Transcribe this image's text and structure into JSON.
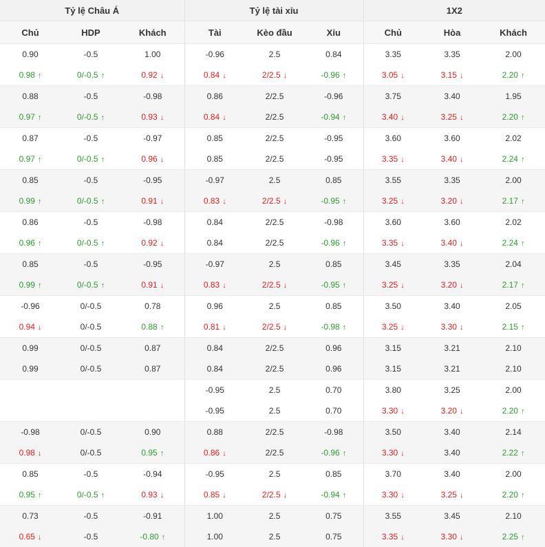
{
  "headers": {
    "asian": "Tỷ lệ Châu Á",
    "overunder": "Tỷ lệ tài xỉu",
    "x12": "1X2"
  },
  "subheaders": [
    "Chủ",
    "HDP",
    "Khách",
    "Tài",
    "Kèo đầu",
    "Xỉu",
    "Chủ",
    "Hòa",
    "Khách"
  ],
  "rows": [
    [
      [
        "0.90",
        ""
      ],
      [
        "-0.5",
        ""
      ],
      [
        "1.00",
        ""
      ],
      [
        "-0.96",
        ""
      ],
      [
        "2.5",
        ""
      ],
      [
        "0.84",
        ""
      ],
      [
        "3.35",
        ""
      ],
      [
        "3.35",
        ""
      ],
      [
        "2.00",
        ""
      ]
    ],
    [
      [
        "0.98",
        "up"
      ],
      [
        "0/-0.5",
        "up"
      ],
      [
        "0.92",
        "down"
      ],
      [
        "0.84",
        "down"
      ],
      [
        "2/2.5",
        "down"
      ],
      [
        "-0.96",
        "up"
      ],
      [
        "3.05",
        "down"
      ],
      [
        "3.15",
        "down"
      ],
      [
        "2.20",
        "up"
      ]
    ],
    [
      [
        "0.88",
        ""
      ],
      [
        "-0.5",
        ""
      ],
      [
        "-0.98",
        ""
      ],
      [
        "0.86",
        ""
      ],
      [
        "2/2.5",
        ""
      ],
      [
        "-0.96",
        ""
      ],
      [
        "3.75",
        ""
      ],
      [
        "3.40",
        ""
      ],
      [
        "1.95",
        ""
      ]
    ],
    [
      [
        "0.97",
        "up"
      ],
      [
        "0/-0.5",
        "up"
      ],
      [
        "0.93",
        "down"
      ],
      [
        "0.84",
        "down"
      ],
      [
        "2/2.5",
        ""
      ],
      [
        "-0.94",
        "up"
      ],
      [
        "3.40",
        "down"
      ],
      [
        "3.25",
        "down"
      ],
      [
        "2.20",
        "up"
      ]
    ],
    [
      [
        "0.87",
        ""
      ],
      [
        "-0.5",
        ""
      ],
      [
        "-0.97",
        ""
      ],
      [
        "0.85",
        ""
      ],
      [
        "2/2.5",
        ""
      ],
      [
        "-0.95",
        ""
      ],
      [
        "3.60",
        ""
      ],
      [
        "3.60",
        ""
      ],
      [
        "2.02",
        ""
      ]
    ],
    [
      [
        "0.97",
        "up"
      ],
      [
        "0/-0.5",
        "up"
      ],
      [
        "0.96",
        "down"
      ],
      [
        "0.85",
        ""
      ],
      [
        "2/2.5",
        ""
      ],
      [
        "-0.95",
        ""
      ],
      [
        "3.35",
        "down"
      ],
      [
        "3.40",
        "down"
      ],
      [
        "2.24",
        "up"
      ]
    ],
    [
      [
        "0.85",
        ""
      ],
      [
        "-0.5",
        ""
      ],
      [
        "-0.95",
        ""
      ],
      [
        "-0.97",
        ""
      ],
      [
        "2.5",
        ""
      ],
      [
        "0.85",
        ""
      ],
      [
        "3.55",
        ""
      ],
      [
        "3.35",
        ""
      ],
      [
        "2.00",
        ""
      ]
    ],
    [
      [
        "0.99",
        "up"
      ],
      [
        "0/-0.5",
        "up"
      ],
      [
        "0.91",
        "down"
      ],
      [
        "0.83",
        "down"
      ],
      [
        "2/2.5",
        "down"
      ],
      [
        "-0.95",
        "up"
      ],
      [
        "3.25",
        "down"
      ],
      [
        "3.20",
        "down"
      ],
      [
        "2.17",
        "up"
      ]
    ],
    [
      [
        "0.86",
        ""
      ],
      [
        "-0.5",
        ""
      ],
      [
        "-0.98",
        ""
      ],
      [
        "0.84",
        ""
      ],
      [
        "2/2.5",
        ""
      ],
      [
        "-0.98",
        ""
      ],
      [
        "3.60",
        ""
      ],
      [
        "3.60",
        ""
      ],
      [
        "2.02",
        ""
      ]
    ],
    [
      [
        "0.96",
        "up"
      ],
      [
        "0/-0.5",
        "up"
      ],
      [
        "0.92",
        "down"
      ],
      [
        "0.84",
        ""
      ],
      [
        "2/2.5",
        ""
      ],
      [
        "-0.96",
        "up"
      ],
      [
        "3.35",
        "down"
      ],
      [
        "3.40",
        "down"
      ],
      [
        "2.24",
        "up"
      ]
    ],
    [
      [
        "0.85",
        ""
      ],
      [
        "-0.5",
        ""
      ],
      [
        "-0.95",
        ""
      ],
      [
        "-0.97",
        ""
      ],
      [
        "2.5",
        ""
      ],
      [
        "0.85",
        ""
      ],
      [
        "3.45",
        ""
      ],
      [
        "3.35",
        ""
      ],
      [
        "2.04",
        ""
      ]
    ],
    [
      [
        "0.99",
        "up"
      ],
      [
        "0/-0.5",
        "up"
      ],
      [
        "0.91",
        "down"
      ],
      [
        "0.83",
        "down"
      ],
      [
        "2/2.5",
        "down"
      ],
      [
        "-0.95",
        "up"
      ],
      [
        "3.25",
        "down"
      ],
      [
        "3.20",
        "down"
      ],
      [
        "2.17",
        "up"
      ]
    ],
    [
      [
        "-0.96",
        ""
      ],
      [
        "0/-0.5",
        ""
      ],
      [
        "0.78",
        ""
      ],
      [
        "0.96",
        ""
      ],
      [
        "2.5",
        ""
      ],
      [
        "0.85",
        ""
      ],
      [
        "3.50",
        ""
      ],
      [
        "3.40",
        ""
      ],
      [
        "2.05",
        ""
      ]
    ],
    [
      [
        "0.94",
        "down"
      ],
      [
        "0/-0.5",
        ""
      ],
      [
        "0.88",
        "up"
      ],
      [
        "0.81",
        "down"
      ],
      [
        "2/2.5",
        "down"
      ],
      [
        "-0.98",
        "up"
      ],
      [
        "3.25",
        "down"
      ],
      [
        "3.30",
        "down"
      ],
      [
        "2.15",
        "up"
      ]
    ],
    [
      [
        "0.99",
        ""
      ],
      [
        "0/-0.5",
        ""
      ],
      [
        "0.87",
        ""
      ],
      [
        "0.84",
        ""
      ],
      [
        "2/2.5",
        ""
      ],
      [
        "0.96",
        ""
      ],
      [
        "3.15",
        ""
      ],
      [
        "3.21",
        ""
      ],
      [
        "2.10",
        ""
      ]
    ],
    [
      [
        "0.99",
        ""
      ],
      [
        "0/-0.5",
        ""
      ],
      [
        "0.87",
        ""
      ],
      [
        "0.84",
        ""
      ],
      [
        "2/2.5",
        ""
      ],
      [
        "0.96",
        ""
      ],
      [
        "3.15",
        ""
      ],
      [
        "3.21",
        ""
      ],
      [
        "2.10",
        ""
      ]
    ],
    [
      [
        "",
        ""
      ],
      [
        "",
        ""
      ],
      [
        "",
        ""
      ],
      [
        "-0.95",
        ""
      ],
      [
        "2.5",
        ""
      ],
      [
        "0.70",
        ""
      ],
      [
        "3.80",
        ""
      ],
      [
        "3.25",
        ""
      ],
      [
        "2.00",
        ""
      ]
    ],
    [
      [
        "",
        ""
      ],
      [
        "",
        ""
      ],
      [
        "",
        ""
      ],
      [
        "-0.95",
        ""
      ],
      [
        "2.5",
        ""
      ],
      [
        "0.70",
        ""
      ],
      [
        "3.30",
        "down"
      ],
      [
        "3.20",
        "down"
      ],
      [
        "2.20",
        "up"
      ]
    ],
    [
      [
        "-0.98",
        ""
      ],
      [
        "0/-0.5",
        ""
      ],
      [
        "0.90",
        ""
      ],
      [
        "0.88",
        ""
      ],
      [
        "2/2.5",
        ""
      ],
      [
        "-0.98",
        ""
      ],
      [
        "3.50",
        ""
      ],
      [
        "3.40",
        ""
      ],
      [
        "2.14",
        ""
      ]
    ],
    [
      [
        "0.98",
        "down"
      ],
      [
        "0/-0.5",
        ""
      ],
      [
        "0.95",
        "up"
      ],
      [
        "0.86",
        "down"
      ],
      [
        "2/2.5",
        ""
      ],
      [
        "-0.96",
        "up"
      ],
      [
        "3.30",
        "down"
      ],
      [
        "3.40",
        ""
      ],
      [
        "2.22",
        "up"
      ]
    ],
    [
      [
        "0.85",
        ""
      ],
      [
        "-0.5",
        ""
      ],
      [
        "-0.94",
        ""
      ],
      [
        "-0.95",
        ""
      ],
      [
        "2.5",
        ""
      ],
      [
        "0.85",
        ""
      ],
      [
        "3.70",
        ""
      ],
      [
        "3.40",
        ""
      ],
      [
        "2.00",
        ""
      ]
    ],
    [
      [
        "0.95",
        "up"
      ],
      [
        "0/-0.5",
        "up"
      ],
      [
        "0.93",
        "down"
      ],
      [
        "0.85",
        "down"
      ],
      [
        "2/2.5",
        "down"
      ],
      [
        "-0.94",
        "up"
      ],
      [
        "3.30",
        "down"
      ],
      [
        "3.25",
        "down"
      ],
      [
        "2.20",
        "up"
      ]
    ],
    [
      [
        "0.73",
        ""
      ],
      [
        "-0.5",
        ""
      ],
      [
        "-0.91",
        ""
      ],
      [
        "1.00",
        ""
      ],
      [
        "2.5",
        ""
      ],
      [
        "0.75",
        ""
      ],
      [
        "3.55",
        ""
      ],
      [
        "3.45",
        ""
      ],
      [
        "2.10",
        ""
      ]
    ],
    [
      [
        "0.65",
        "down"
      ],
      [
        "-0.5",
        ""
      ],
      [
        "-0.80",
        "up"
      ],
      [
        "1.00",
        ""
      ],
      [
        "2.5",
        ""
      ],
      [
        "0.75",
        ""
      ],
      [
        "3.35",
        "down"
      ],
      [
        "3.30",
        "down"
      ],
      [
        "2.25",
        "up"
      ]
    ]
  ],
  "colors": {
    "up": "#2e9b2e",
    "down": "#e02020",
    "header_bg": "#f2f2f2",
    "stripe_bg": "#f5f5f5"
  },
  "arrows": {
    "up": "arrow-up-icon",
    "down": "arrow-down-icon"
  }
}
